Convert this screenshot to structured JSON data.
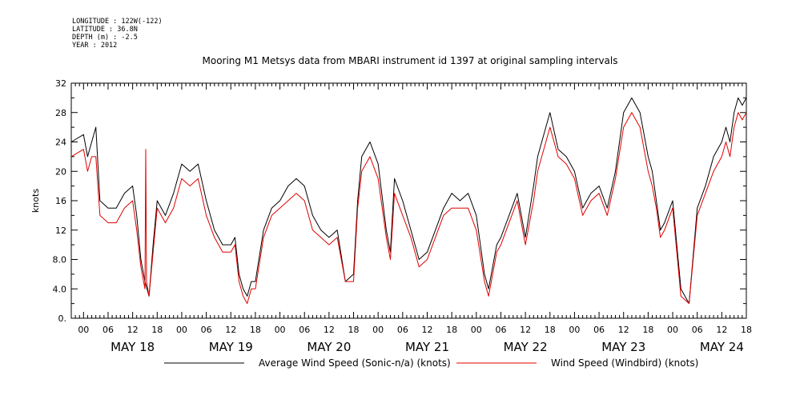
{
  "meta": {
    "longitude": "LONGITUDE : 122W(-122)",
    "latitude": "LATITUDE : 36.8N",
    "depth": "DEPTH (m) : -2.5",
    "year": "YEAR : 2012"
  },
  "chart_data": {
    "type": "line",
    "title": "Mooring M1 Metsys data from MBARI instrument id 1397 at original sampling intervals",
    "ylabel": "knots",
    "xlabel": "",
    "ylim": [
      0,
      32
    ],
    "y_ticks": [
      "0.",
      "4.0",
      "8.0",
      "12",
      "16",
      "20",
      "24",
      "28",
      "32"
    ],
    "x_range_hours": [
      -3,
      162
    ],
    "x_hour_ticks": [
      "00",
      "06",
      "12",
      "18",
      "00",
      "06",
      "12",
      "18",
      "00",
      "06",
      "12",
      "18",
      "00",
      "06",
      "12",
      "18",
      "00",
      "06",
      "12",
      "18",
      "00",
      "06",
      "12",
      "18",
      "00",
      "06",
      "12",
      "18"
    ],
    "x_date_labels": [
      "MAY 18",
      "MAY 19",
      "MAY 20",
      "MAY 21",
      "MAY 22",
      "MAY 23",
      "MAY 24"
    ],
    "grid": false,
    "legend_position": "bottom",
    "series": [
      {
        "name": "Average Wind Speed (Sonic-n/a) (knots)",
        "color": "#000000",
        "x": [
          -3,
          0,
          1,
          2,
          3,
          4,
          6,
          8,
          10,
          12,
          13,
          14,
          15,
          16,
          17,
          18,
          20,
          22,
          24,
          26,
          28,
          30,
          32,
          34,
          36,
          37,
          38,
          39,
          40,
          41,
          42,
          44,
          46,
          48,
          50,
          52,
          54,
          56,
          58,
          60,
          62,
          64,
          66,
          67,
          68,
          70,
          72,
          74,
          75,
          76,
          78,
          80,
          82,
          84,
          86,
          88,
          90,
          92,
          94,
          96,
          98,
          99,
          100,
          101,
          102,
          104,
          106,
          108,
          110,
          111,
          112,
          114,
          116,
          118,
          120,
          122,
          124,
          126,
          128,
          130,
          132,
          134,
          136,
          137,
          138,
          139,
          140,
          141,
          142,
          144,
          146,
          148,
          150,
          152,
          154,
          156,
          157,
          158,
          159,
          160,
          161,
          162
        ],
        "y": [
          24,
          25,
          22,
          24,
          26,
          16,
          15,
          15,
          17,
          18,
          14,
          8,
          5,
          3,
          10,
          16,
          14,
          17,
          21,
          20,
          21,
          16,
          12,
          10,
          10,
          11,
          6,
          4,
          3,
          5,
          5,
          12,
          15,
          16,
          18,
          19,
          18,
          14,
          12,
          11,
          12,
          5,
          6,
          16,
          22,
          24,
          21,
          12,
          9,
          19,
          16,
          12,
          8,
          9,
          12,
          15,
          17,
          16,
          17,
          14,
          6,
          4,
          7,
          10,
          11,
          14,
          17,
          11,
          18,
          22,
          24,
          28,
          23,
          22,
          20,
          15,
          17,
          18,
          15,
          20,
          28,
          30,
          28,
          25,
          22,
          20,
          16,
          12,
          13,
          16,
          4,
          2,
          15,
          18,
          22,
          24,
          26,
          24,
          28,
          30,
          29,
          30
        ]
      },
      {
        "name": "Wind Speed (Windbird) (knots)",
        "color": "#e00000",
        "x": [
          -3,
          0,
          1,
          2,
          3,
          4,
          6,
          8,
          10,
          12,
          13,
          14,
          15,
          15.2,
          15.4,
          16,
          17,
          18,
          20,
          22,
          24,
          26,
          28,
          30,
          32,
          34,
          36,
          37,
          38,
          39,
          40,
          41,
          42,
          44,
          46,
          48,
          50,
          52,
          54,
          56,
          58,
          60,
          62,
          64,
          66,
          67,
          68,
          70,
          72,
          74,
          75,
          76,
          78,
          80,
          82,
          84,
          86,
          88,
          90,
          92,
          94,
          96,
          98,
          99,
          100,
          101,
          102,
          104,
          106,
          108,
          110,
          111,
          112,
          114,
          116,
          118,
          120,
          122,
          124,
          126,
          128,
          130,
          132,
          134,
          136,
          137,
          138,
          139,
          140,
          141,
          142,
          144,
          146,
          148,
          150,
          152,
          154,
          156,
          157,
          158,
          159,
          160,
          161,
          162
        ],
        "y": [
          22,
          23,
          20,
          22,
          22,
          14,
          13,
          13,
          15,
          16,
          12,
          7,
          4,
          23,
          5,
          3,
          9,
          15,
          13,
          15,
          19,
          18,
          19,
          14,
          11,
          9,
          9,
          10,
          5,
          3,
          2,
          4,
          4,
          11,
          14,
          15,
          16,
          17,
          16,
          12,
          11,
          10,
          11,
          5,
          5,
          15,
          20,
          22,
          19,
          11,
          8,
          17,
          14,
          11,
          7,
          8,
          11,
          14,
          15,
          15,
          15,
          12,
          5,
          3,
          6,
          9,
          10,
          13,
          16,
          10,
          16,
          20,
          22,
          26,
          22,
          21,
          19,
          14,
          16,
          17,
          14,
          19,
          26,
          28,
          26,
          23,
          20,
          18,
          15,
          11,
          12,
          15,
          3,
          2,
          14,
          17,
          20,
          22,
          24,
          22,
          26,
          28,
          27,
          28
        ]
      }
    ]
  }
}
